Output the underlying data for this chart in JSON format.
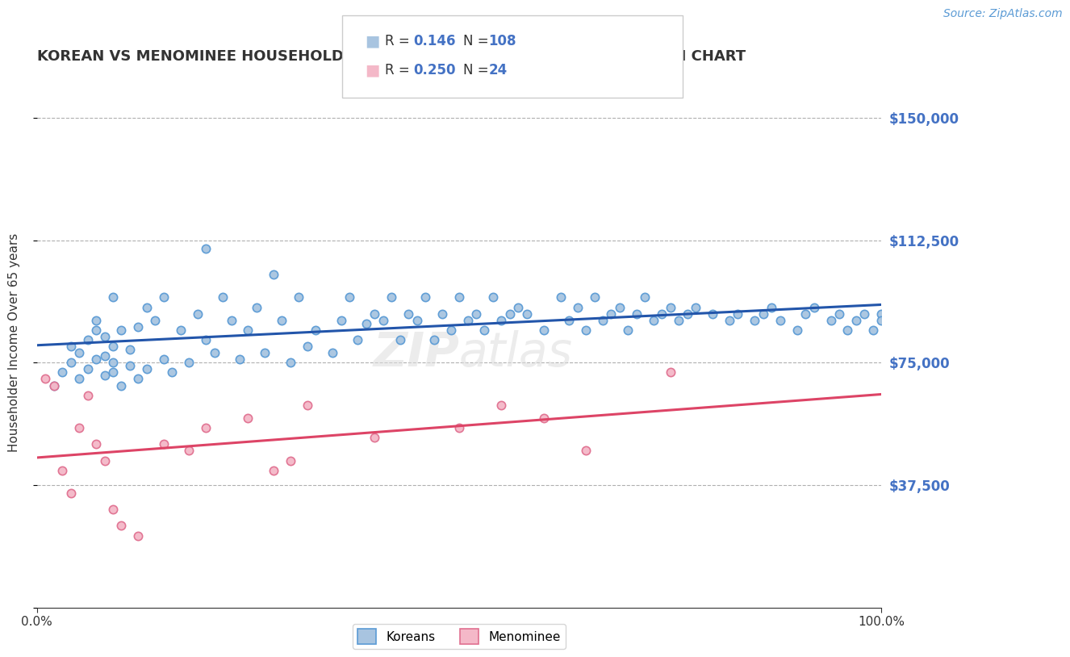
{
  "title": "KOREAN VS MENOMINEE HOUSEHOLDER INCOME OVER 65 YEARS CORRELATION CHART",
  "ylabel": "Householder Income Over 65 years",
  "source": "Source: ZipAtlas.com",
  "watermark": "ZIPAtlas",
  "xlim": [
    0,
    100
  ],
  "ylim": [
    0,
    162500
  ],
  "korean_R": 0.146,
  "korean_N": 108,
  "menominee_R": 0.25,
  "menominee_N": 24,
  "korean_color": "#a8c4e0",
  "korean_edge": "#5b9bd5",
  "menominee_color": "#f4b8c8",
  "menominee_edge": "#e07090",
  "trend_korean_color": "#2255aa",
  "trend_menominee_color": "#dd4466",
  "legend_label_korean": "Koreans",
  "legend_label_menominee": "Menominee",
  "title_color": "#333333",
  "axis_label_color": "#4472c4",
  "stat_color": "#4472c4",
  "background_color": "#ffffff",
  "grid_color": "#b0b0b0",
  "korean_x": [
    2,
    3,
    4,
    4,
    5,
    5,
    6,
    6,
    7,
    7,
    7,
    8,
    8,
    8,
    9,
    9,
    9,
    9,
    10,
    10,
    11,
    11,
    12,
    12,
    13,
    13,
    14,
    15,
    15,
    16,
    17,
    18,
    19,
    20,
    20,
    21,
    22,
    23,
    24,
    25,
    26,
    27,
    28,
    29,
    30,
    31,
    32,
    33,
    35,
    36,
    37,
    38,
    39,
    40,
    41,
    42,
    43,
    44,
    45,
    46,
    47,
    48,
    49,
    50,
    51,
    52,
    53,
    54,
    55,
    56,
    57,
    58,
    60,
    62,
    63,
    64,
    65,
    66,
    67,
    68,
    69,
    70,
    71,
    72,
    73,
    74,
    75,
    76,
    77,
    78,
    80,
    82,
    83,
    85,
    86,
    87,
    88,
    90,
    91,
    92,
    94,
    95,
    96,
    97,
    98,
    99,
    100,
    100
  ],
  "korean_y": [
    68000,
    72000,
    75000,
    80000,
    70000,
    78000,
    82000,
    73000,
    76000,
    85000,
    88000,
    71000,
    77000,
    83000,
    72000,
    75000,
    80000,
    95000,
    68000,
    85000,
    74000,
    79000,
    86000,
    70000,
    92000,
    73000,
    88000,
    76000,
    95000,
    72000,
    85000,
    75000,
    90000,
    82000,
    110000,
    78000,
    95000,
    88000,
    76000,
    85000,
    92000,
    78000,
    102000,
    88000,
    75000,
    95000,
    80000,
    85000,
    78000,
    88000,
    95000,
    82000,
    87000,
    90000,
    88000,
    95000,
    82000,
    90000,
    88000,
    95000,
    82000,
    90000,
    85000,
    95000,
    88000,
    90000,
    85000,
    95000,
    88000,
    90000,
    92000,
    90000,
    85000,
    95000,
    88000,
    92000,
    85000,
    95000,
    88000,
    90000,
    92000,
    85000,
    90000,
    95000,
    88000,
    90000,
    92000,
    88000,
    90000,
    92000,
    90000,
    88000,
    90000,
    88000,
    90000,
    92000,
    88000,
    85000,
    90000,
    92000,
    88000,
    90000,
    85000,
    88000,
    90000,
    85000,
    90000,
    88000
  ],
  "menominee_x": [
    1,
    2,
    3,
    4,
    5,
    6,
    7,
    8,
    9,
    10,
    12,
    15,
    18,
    20,
    25,
    28,
    30,
    32,
    40,
    50,
    55,
    60,
    65,
    75
  ],
  "menominee_y": [
    70000,
    68000,
    42000,
    35000,
    55000,
    65000,
    50000,
    45000,
    30000,
    25000,
    22000,
    50000,
    48000,
    55000,
    58000,
    42000,
    45000,
    62000,
    52000,
    55000,
    62000,
    58000,
    48000,
    72000
  ]
}
